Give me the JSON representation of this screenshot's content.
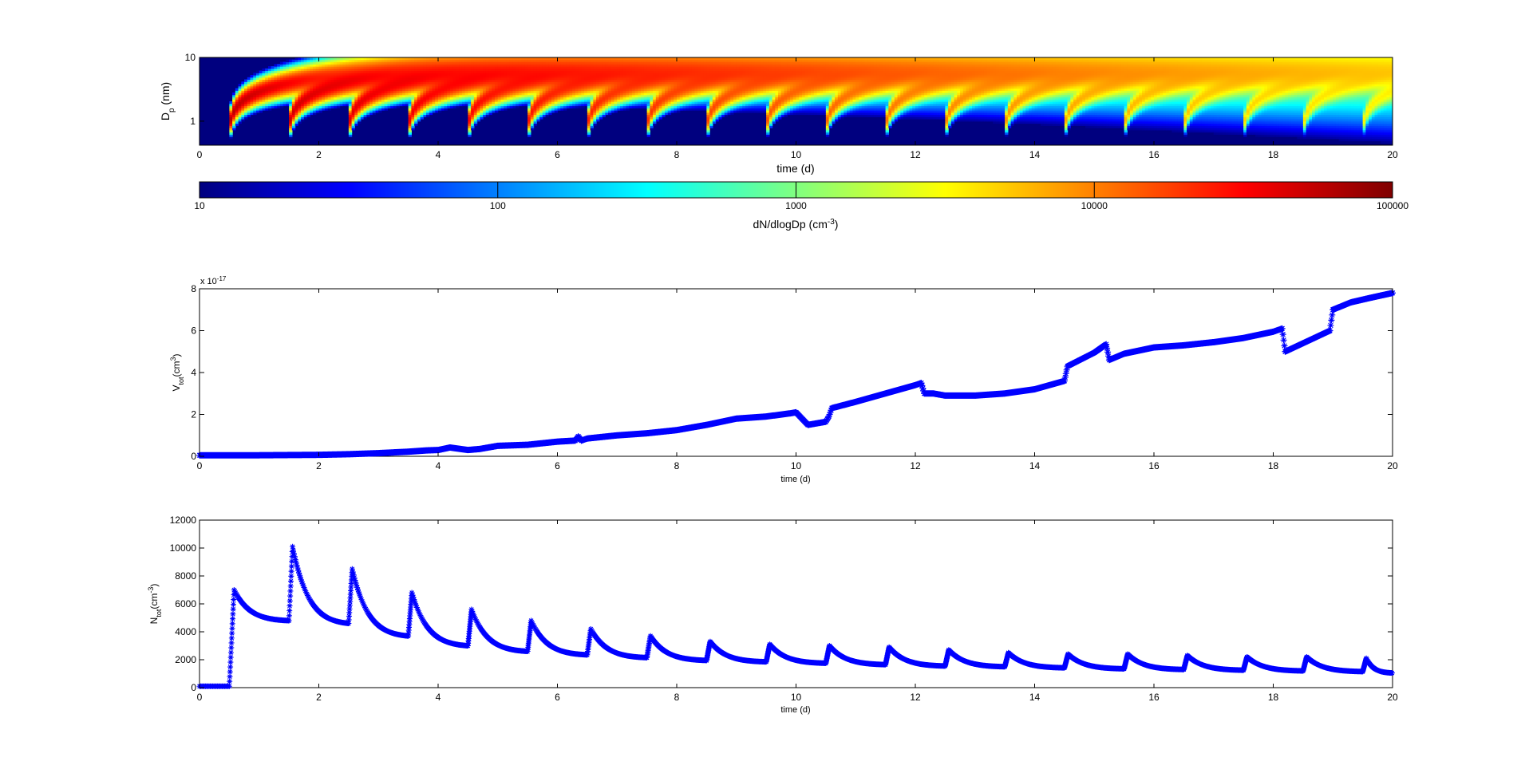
{
  "chart_data": [
    {
      "type": "heatmap",
      "title": "",
      "xlabel": "time (d)",
      "ylabel": "D",
      "ylabel_sub": "p",
      "ylabel_unit": " (nm)",
      "xlim": [
        0,
        20
      ],
      "xticks": [
        "0",
        "2",
        "4",
        "6",
        "8",
        "10",
        "12",
        "14",
        "16",
        "18",
        "20"
      ],
      "ylim": [
        0.42,
        10
      ],
      "yscale": "log",
      "yticks": [
        "1",
        "10"
      ],
      "grid": false,
      "event_days": [
        0.5,
        1.5,
        2.5,
        3.5,
        4.5,
        5.5,
        6.5,
        7.5,
        8.5,
        9.5,
        10.5,
        11.5,
        12.5,
        13.5,
        14.5,
        15.5,
        16.5,
        17.5,
        18.5,
        19.5
      ],
      "colorbar": {
        "label": "dN/dlogDp (cm",
        "label_sup": "-3",
        "label_end": ")",
        "scale": "log",
        "range": [
          10,
          100000
        ],
        "ticks": [
          "10",
          "100",
          "1000",
          "10000",
          "100000"
        ],
        "colormap": "jet",
        "colors": [
          "#00007f",
          "#0000ff",
          "#0080ff",
          "#00ffff",
          "#80ff80",
          "#ffff00",
          "#ff8000",
          "#ff0000",
          "#7f0000"
        ]
      }
    },
    {
      "type": "line",
      "xlabel": "time (d)",
      "ylabel": "V",
      "ylabel_sub": "tot",
      "ylabel_unit": "(cm",
      "ylabel_sup": "3",
      "ylabel_end": ")",
      "multiplier_text": "x 10",
      "multiplier_exp": "-17",
      "xlim": [
        0,
        20
      ],
      "ylim": [
        0,
        8
      ],
      "xticks": [
        "0",
        "2",
        "4",
        "6",
        "8",
        "10",
        "12",
        "14",
        "16",
        "18",
        "20"
      ],
      "yticks": [
        "0",
        "2",
        "4",
        "6",
        "8"
      ],
      "marker": "*",
      "color": "#0000ff",
      "grid": false,
      "series": [
        {
          "x": [
            0,
            1,
            2,
            2.5,
            3,
            3.5,
            3.8,
            4.0,
            4.2,
            4.5,
            4.7,
            5.0,
            5.5,
            6.0,
            6.3,
            6.35,
            6.4,
            6.5,
            7.0,
            7.5,
            8.0,
            8.5,
            9.0,
            9.5,
            9.9,
            10.0,
            10.2,
            10.5,
            10.55,
            10.6,
            11.0,
            11.5,
            12.0,
            12.1,
            12.15,
            12.3,
            12.5,
            13.0,
            13.5,
            14.0,
            14.5,
            14.55,
            15.0,
            15.2,
            15.25,
            15.5,
            16.0,
            16.5,
            17.0,
            17.5,
            18.0,
            18.15,
            18.2,
            18.5,
            18.95,
            19.0,
            19.3,
            19.6,
            20.0
          ],
          "y": [
            0.05,
            0.05,
            0.07,
            0.1,
            0.15,
            0.22,
            0.28,
            0.3,
            0.42,
            0.3,
            0.35,
            0.5,
            0.55,
            0.7,
            0.75,
            0.95,
            0.75,
            0.85,
            1.0,
            1.1,
            1.25,
            1.5,
            1.8,
            1.9,
            2.05,
            2.1,
            1.5,
            1.65,
            1.9,
            2.3,
            2.6,
            3.0,
            3.4,
            3.5,
            3.0,
            3.0,
            2.9,
            2.9,
            3.0,
            3.2,
            3.6,
            4.3,
            4.95,
            5.35,
            4.6,
            4.9,
            5.2,
            5.3,
            5.45,
            5.65,
            5.95,
            6.1,
            5.0,
            5.4,
            6.0,
            7.0,
            7.35,
            7.55,
            7.8
          ]
        }
      ]
    },
    {
      "type": "line",
      "xlabel": "time (d)",
      "ylabel": "N",
      "ylabel_sub": "tot",
      "ylabel_unit": "(cm",
      "ylabel_sup": "-3",
      "ylabel_end": ")",
      "xlim": [
        0,
        20
      ],
      "ylim": [
        0,
        12000
      ],
      "xticks": [
        "0",
        "2",
        "4",
        "6",
        "8",
        "10",
        "12",
        "14",
        "16",
        "18",
        "20"
      ],
      "yticks": [
        "0",
        "2000",
        "4000",
        "6000",
        "8000",
        "10000",
        "12000"
      ],
      "marker": "*",
      "color": "#0000ff",
      "grid": false,
      "series": [
        {
          "event_days": [
            0.5,
            1.5,
            2.5,
            3.5,
            4.5,
            5.5,
            6.5,
            7.5,
            8.5,
            9.5,
            10.5,
            11.5,
            12.5,
            13.5,
            14.5,
            15.5,
            16.5,
            17.5,
            18.5,
            19.5
          ],
          "peaks": [
            7000,
            10100,
            8500,
            6800,
            5600,
            4800,
            4200,
            3700,
            3300,
            3100,
            3000,
            2900,
            2700,
            2500,
            2400,
            2400,
            2300,
            2200,
            2200,
            2100
          ],
          "troughs_before_next_event": [
            4800,
            4600,
            3700,
            3000,
            2600,
            2350,
            2150,
            1950,
            1850,
            1750,
            1650,
            1550,
            1500,
            1420,
            1350,
            1300,
            1250,
            1200,
            1150,
            1050
          ],
          "baseline_before_first_event": 100
        }
      ]
    }
  ]
}
